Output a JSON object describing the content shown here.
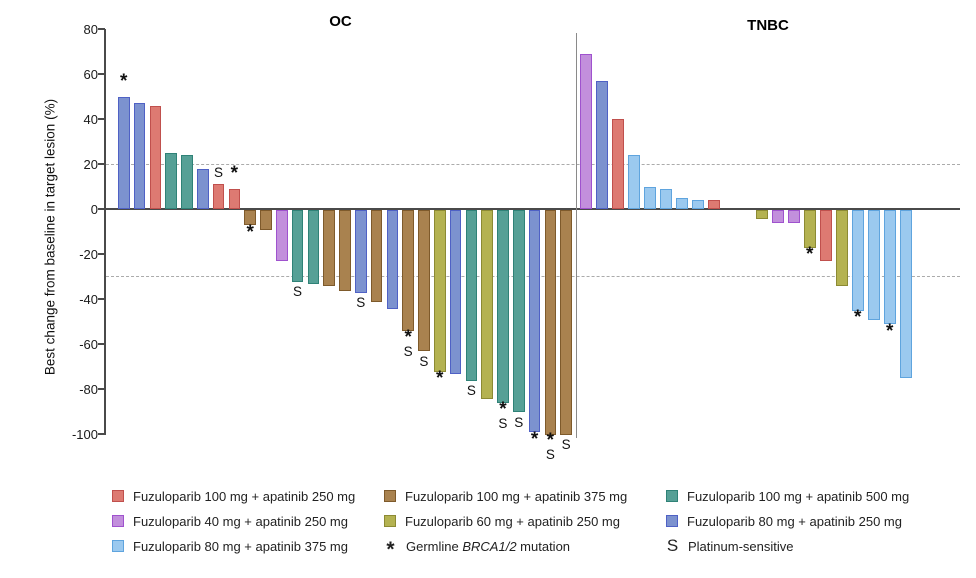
{
  "chart_data": {
    "type": "bar",
    "subtype": "waterfall",
    "ylabel": "Best change from baseline in target lesion (%)",
    "ylim": [
      -100,
      80
    ],
    "yticks": [
      80,
      60,
      40,
      20,
      0,
      -20,
      -40,
      -60,
      -80,
      -100
    ],
    "reference_lines": [
      20,
      -30
    ],
    "grid": false,
    "marker_meanings": {
      "*": "Germline BRCA1/2 mutation",
      "S": "Platinum-sensitive"
    },
    "groups": [
      {
        "name": "OC",
        "bars": [
          {
            "value": 50,
            "color": "blueviolet",
            "marks": [
              "*"
            ]
          },
          {
            "value": 47,
            "color": "blueviolet",
            "marks": []
          },
          {
            "value": 46,
            "color": "red",
            "marks": []
          },
          {
            "value": 25,
            "color": "teal",
            "marks": []
          },
          {
            "value": 24,
            "color": "teal",
            "marks": []
          },
          {
            "value": 18,
            "color": "blueviolet",
            "marks": []
          },
          {
            "value": 11,
            "color": "red",
            "marks": [
              "S"
            ]
          },
          {
            "value": 9,
            "color": "red",
            "marks": [
              "*"
            ]
          },
          {
            "value": -7,
            "color": "brown",
            "marks": [
              "*"
            ]
          },
          {
            "value": -9,
            "color": "brown",
            "marks": []
          },
          {
            "value": -23,
            "color": "orchid",
            "marks": []
          },
          {
            "value": -32,
            "color": "teal",
            "marks": [
              "S"
            ]
          },
          {
            "value": -33,
            "color": "teal",
            "marks": []
          },
          {
            "value": -34,
            "color": "brown",
            "marks": []
          },
          {
            "value": -36,
            "color": "brown",
            "marks": []
          },
          {
            "value": -37,
            "color": "blueviolet",
            "marks": [
              "S"
            ]
          },
          {
            "value": -41,
            "color": "brown",
            "marks": []
          },
          {
            "value": -44,
            "color": "blueviolet",
            "marks": []
          },
          {
            "value": -54,
            "color": "brown",
            "marks": [
              "*",
              "S"
            ]
          },
          {
            "value": -63,
            "color": "brown",
            "marks": [
              "S"
            ]
          },
          {
            "value": -72,
            "color": "olive",
            "marks": [
              "*"
            ]
          },
          {
            "value": -73,
            "color": "blueviolet",
            "marks": []
          },
          {
            "value": -76,
            "color": "teal",
            "marks": [
              "S"
            ]
          },
          {
            "value": -84,
            "color": "olive",
            "marks": []
          },
          {
            "value": -86,
            "color": "teal",
            "marks": [
              "*",
              "S"
            ]
          },
          {
            "value": -90,
            "color": "teal",
            "marks": [
              "S"
            ]
          },
          {
            "value": -99,
            "color": "blueviolet",
            "marks": [
              "*"
            ]
          },
          {
            "value": -100,
            "color": "brown",
            "marks": [
              "*",
              "S"
            ]
          },
          {
            "value": -100,
            "color": "brown",
            "marks": [
              "S"
            ]
          }
        ]
      },
      {
        "name": "TNBC",
        "bars": [
          {
            "value": 69,
            "color": "orchid",
            "marks": []
          },
          {
            "value": 57,
            "color": "blueviolet",
            "marks": []
          },
          {
            "value": 40,
            "color": "red",
            "marks": []
          },
          {
            "value": 24,
            "color": "lightblue",
            "marks": []
          },
          {
            "value": 10,
            "color": "lightblue",
            "marks": []
          },
          {
            "value": 9,
            "color": "lightblue",
            "marks": []
          },
          {
            "value": 5,
            "color": "lightblue",
            "marks": []
          },
          {
            "value": 4,
            "color": "lightblue",
            "marks": []
          },
          {
            "value": 4,
            "color": "red",
            "marks": []
          },
          null,
          null,
          {
            "value": -4,
            "color": "olive",
            "marks": []
          },
          {
            "value": -6,
            "color": "orchid",
            "marks": []
          },
          {
            "value": -6,
            "color": "orchid",
            "marks": []
          },
          {
            "value": -17,
            "color": "olive",
            "marks": [
              "*"
            ]
          },
          {
            "value": -23,
            "color": "red",
            "marks": []
          },
          {
            "value": -34,
            "color": "olive",
            "marks": []
          },
          {
            "value": -45,
            "color": "lightblue",
            "marks": [
              "*"
            ]
          },
          {
            "value": -49,
            "color": "lightblue",
            "marks": []
          },
          {
            "value": -51,
            "color": "lightblue",
            "marks": [
              "*"
            ]
          },
          {
            "value": -75,
            "color": "lightblue",
            "marks": []
          }
        ]
      }
    ],
    "colors": {
      "red": {
        "fill": "#DD7A72",
        "stroke": "#C0504D"
      },
      "brown": {
        "fill": "#A9824F",
        "stroke": "#7E5A2B"
      },
      "teal": {
        "fill": "#56A096",
        "stroke": "#2F8277"
      },
      "orchid": {
        "fill": "#C28FDC",
        "stroke": "#9F52CE"
      },
      "olive": {
        "fill": "#B4B251",
        "stroke": "#8C8A33"
      },
      "blueviolet": {
        "fill": "#7C92CF",
        "stroke": "#4F61C5"
      },
      "lightblue": {
        "fill": "#9BC9EF",
        "stroke": "#5FA4DE"
      }
    }
  },
  "legend": {
    "items": [
      {
        "type": "swatch",
        "color": "red",
        "label": "Fuzuloparib 100 mg + apatinib 250 mg"
      },
      {
        "type": "swatch",
        "color": "brown",
        "label": "Fuzuloparib 100 mg + apatinib 375 mg"
      },
      {
        "type": "swatch",
        "color": "teal",
        "label": "Fuzuloparib 100 mg + apatinib 500 mg"
      },
      {
        "type": "swatch",
        "color": "orchid",
        "label": "Fuzuloparib 40 mg + apatinib 250 mg"
      },
      {
        "type": "swatch",
        "color": "olive",
        "label": "Fuzuloparib 60 mg + apatinib 250 mg"
      },
      {
        "type": "swatch",
        "color": "blueviolet",
        "label": "Fuzuloparib 80 mg + apatinib 250 mg"
      },
      {
        "type": "swatch",
        "color": "lightblue",
        "label": "Fuzuloparib 80 mg + apatinib 375 mg"
      },
      {
        "type": "symbol",
        "symbol": "*",
        "label_prefix": "Germline ",
        "label_italic": "BRCA1/2",
        "label_suffix": " mutation"
      },
      {
        "type": "symbol",
        "symbol": "S",
        "label": "Platinum-sensitive"
      }
    ]
  }
}
